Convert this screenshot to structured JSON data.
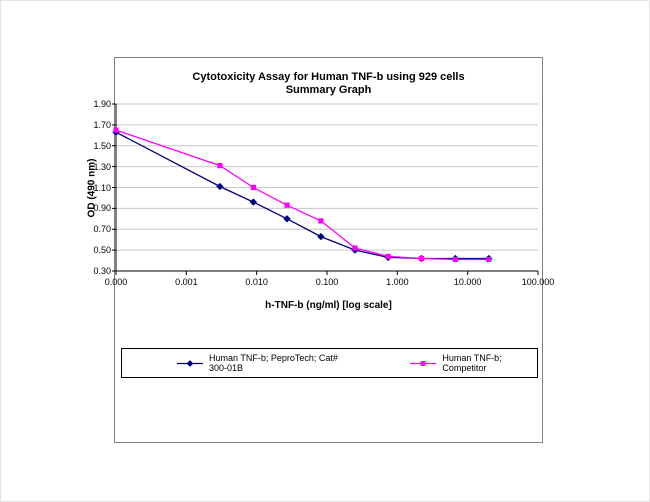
{
  "chart_data": {
    "type": "line",
    "title_line1": "Cytotoxicity Assay for Human TNF-b using 929 cells",
    "title_line2": "Summary Graph",
    "xlabel": "h-TNF-b (ng/ml) [log scale]",
    "ylabel": "OD (490 nm)",
    "x_scale": "log",
    "xlim": [
      0.0001,
      100
    ],
    "ylim": [
      0.3,
      1.9
    ],
    "grid": "horizontal",
    "gridline_color": "#c6c6c6",
    "axis_color": "#000000",
    "x_ticks": [
      {
        "value": 0.0001,
        "label": "0.000"
      },
      {
        "value": 0.001,
        "label": "0.001"
      },
      {
        "value": 0.01,
        "label": "0.010"
      },
      {
        "value": 0.1,
        "label": "0.100"
      },
      {
        "value": 1,
        "label": "1.000"
      },
      {
        "value": 10,
        "label": "10.000"
      },
      {
        "value": 100,
        "label": "100.000"
      }
    ],
    "y_ticks": [
      {
        "value": 0.3,
        "label": "0.30"
      },
      {
        "value": 0.5,
        "label": "0.50"
      },
      {
        "value": 0.7,
        "label": "0.70"
      },
      {
        "value": 0.9,
        "label": "0.90"
      },
      {
        "value": 1.1,
        "label": "1.10"
      },
      {
        "value": 1.3,
        "label": "1.30"
      },
      {
        "value": 1.5,
        "label": "1.50"
      },
      {
        "value": 1.7,
        "label": "1.70"
      },
      {
        "value": 1.9,
        "label": "1.90"
      }
    ],
    "legend_position": "bottom",
    "series": [
      {
        "name": "Human TNF-b; PeproTech; Cat# 300-01B",
        "color": "#000080",
        "marker": "diamond",
        "x": [
          0.0001,
          0.003,
          0.009,
          0.027,
          0.082,
          0.25,
          0.74,
          2.2,
          6.7,
          20
        ],
        "y": [
          1.63,
          1.11,
          0.96,
          0.8,
          0.63,
          0.5,
          0.43,
          0.42,
          0.42,
          0.42
        ]
      },
      {
        "name": "Human TNF-b; Competitor",
        "color": "#ff00ff",
        "marker": "square",
        "x": [
          0.0001,
          0.003,
          0.009,
          0.027,
          0.082,
          0.25,
          0.74,
          2.2,
          6.7,
          20
        ],
        "y": [
          1.65,
          1.31,
          1.1,
          0.93,
          0.78,
          0.52,
          0.44,
          0.42,
          0.41,
          0.41
        ]
      }
    ]
  }
}
